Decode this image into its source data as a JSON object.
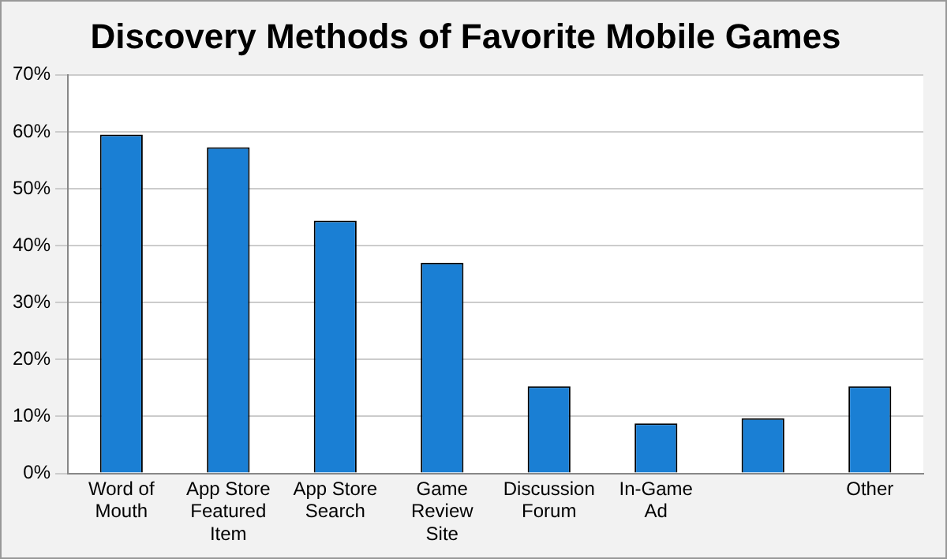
{
  "chart_data": {
    "type": "bar",
    "title": "Discovery Methods of Favorite Mobile Games",
    "categories": [
      "Word of Mouth",
      "App Store Featured Item",
      "App Store Search",
      "Game Review Site",
      "Discussion Forum",
      "In-Game Ad",
      null,
      "Other"
    ],
    "values": [
      59.5,
      57.3,
      44.4,
      37,
      15.3,
      8.8,
      9.7,
      15.3
    ],
    "color": "#1a7fd4",
    "ylim": [
      0,
      70
    ],
    "yticks": [
      {
        "value": 0,
        "label": "0%"
      },
      {
        "value": 10,
        "label": "10%"
      },
      {
        "value": 20,
        "label": "20%"
      },
      {
        "value": 30,
        "label": "30%"
      },
      {
        "value": 40,
        "label": "40%"
      },
      {
        "value": 50,
        "label": "50%"
      },
      {
        "value": 60,
        "label": "60%"
      },
      {
        "value": 70,
        "label": "70%"
      }
    ],
    "grid": "y",
    "legend": false
  }
}
